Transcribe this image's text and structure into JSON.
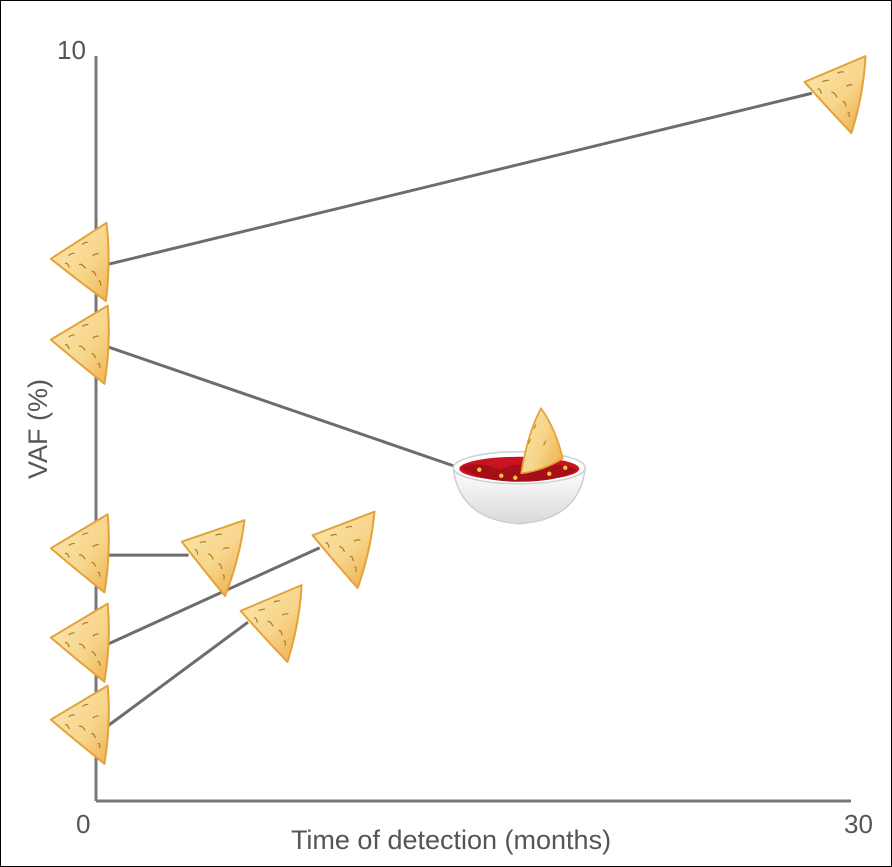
{
  "chart_data": {
    "type": "line",
    "xlabel": "Time of detection (months)",
    "ylabel": "VAF (%)",
    "xlim": [
      0,
      30
    ],
    "ylim": [
      0,
      10
    ],
    "x_tick_labels": [
      "0",
      "30"
    ],
    "y_tick_labels": [
      "0",
      "10"
    ],
    "grid": false,
    "legend": "none",
    "series": [
      {
        "points": [
          [
            0,
            7.2
          ],
          [
            28.5,
            9.5
          ]
        ],
        "end_marker": "chip"
      },
      {
        "points": [
          [
            0,
            6.1
          ],
          [
            14,
            4.5
          ]
        ],
        "end_marker": "chip-in-salsa-bowl"
      },
      {
        "points": [
          [
            0,
            3.3
          ],
          [
            3.3,
            3.3
          ]
        ],
        "end_marker": "chip"
      },
      {
        "points": [
          [
            0,
            2.1
          ],
          [
            8.6,
            3.4
          ]
        ],
        "end_marker": "chip"
      },
      {
        "points": [
          [
            0,
            1.0
          ],
          [
            5.7,
            2.4
          ]
        ],
        "end_marker": "chip"
      }
    ],
    "colors": {
      "line": "#6d6d6d",
      "axis": "#777777",
      "chip_fill": "#f7d58a",
      "chip_edge": "#e3a33a",
      "salsa": "#c8141f",
      "bowl": "#f2f2f2"
    },
    "marker_icon": "tortilla-chip-icon"
  }
}
